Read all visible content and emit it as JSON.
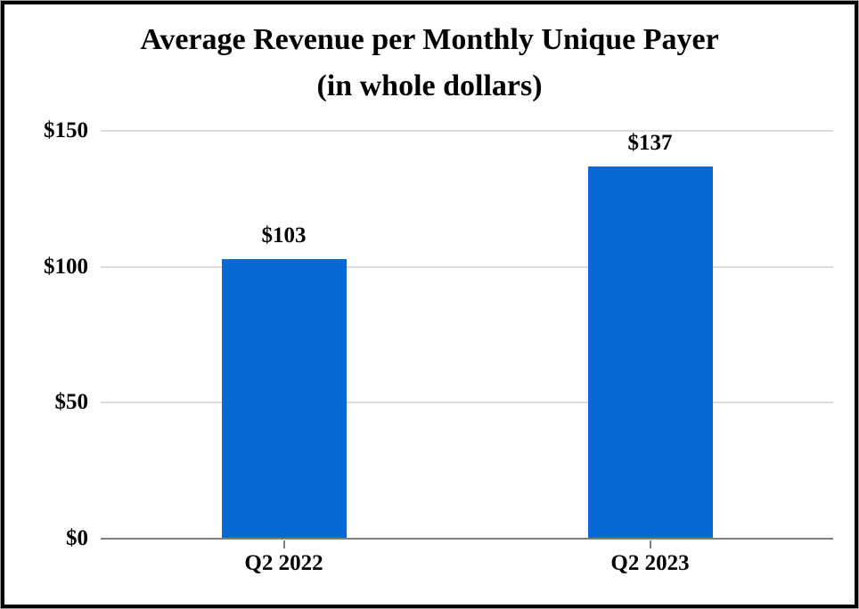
{
  "title": {
    "line1": "Average Revenue per Monthly Unique Payer",
    "line2": "(in whole dollars)"
  },
  "chart_data": {
    "type": "bar",
    "title": "Average Revenue per Monthly Unique Payer (in whole dollars)",
    "categories": [
      "Q2 2022",
      "Q2 2023"
    ],
    "values": [
      103,
      137
    ],
    "data_labels": [
      "$103",
      "$137"
    ],
    "xlabel": "",
    "ylabel": "",
    "ylim": [
      0,
      150
    ],
    "yticks": [
      0,
      50,
      100,
      150
    ],
    "ytick_labels": [
      "$0",
      "$50",
      "$100",
      "$150"
    ],
    "grid": "horizontal gridlines at yticks",
    "legend": "none",
    "colors": {
      "bar": "#0669D1",
      "gridline": "#DCDCDC",
      "axis": "#7F7F7F",
      "text": "#000000",
      "frame_border": "#000000"
    }
  }
}
